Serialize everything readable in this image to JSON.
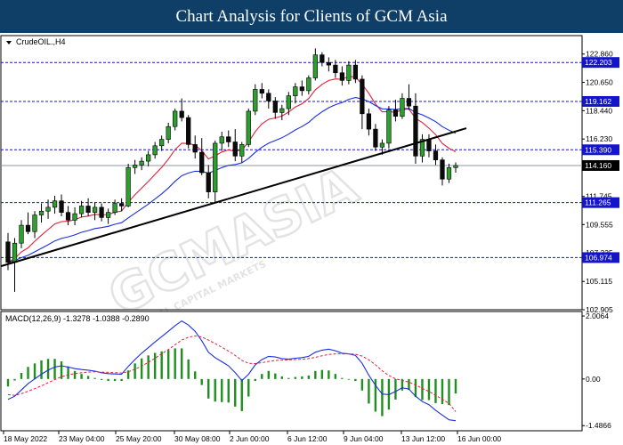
{
  "banner": {
    "title": "Chart Analysis for Clients of GCM Asia"
  },
  "watermark": {
    "brand": "GCMASIA",
    "tagline": "GLOBAL CAPITAL MARKETS"
  },
  "chart_data": [
    {
      "type": "candlestick",
      "symbol_label": "CrudeOIL.,H4",
      "y_ticks": [
        "122.860",
        "120.650",
        "118.440",
        "116.230",
        "111.745",
        "109.555",
        "107.335",
        "105.115",
        "102.905"
      ],
      "ylim": [
        102.905,
        124.3
      ],
      "levels": [
        {
          "label": "122.203",
          "value": 122.203,
          "color": "#1414c8"
        },
        {
          "label": "119.162",
          "value": 119.162,
          "color": "#1414c8"
        },
        {
          "label": "115.390",
          "value": 115.39,
          "color": "#1414c8"
        },
        {
          "label": "111.265",
          "value": 111.265,
          "color": "#1414c8"
        },
        {
          "label": "106.974",
          "value": 106.974,
          "color": "#1414c8"
        }
      ],
      "current_price": {
        "label": "114.160",
        "value": 114.16
      },
      "candles": [
        [
          108.2,
          108.9,
          106.0,
          106.6
        ],
        [
          106.6,
          108.5,
          104.3,
          108.1
        ],
        [
          108.1,
          109.9,
          107.7,
          109.5
        ],
        [
          109.5,
          110.5,
          108.8,
          109.0
        ],
        [
          109.0,
          110.6,
          108.5,
          110.3
        ],
        [
          110.3,
          111.2,
          109.7,
          110.6
        ],
        [
          110.6,
          111.5,
          110.0,
          110.9
        ],
        [
          110.9,
          111.8,
          110.4,
          111.4
        ],
        [
          111.4,
          111.9,
          110.2,
          110.5
        ],
        [
          110.5,
          111.0,
          109.5,
          109.9
        ],
        [
          109.9,
          110.9,
          109.5,
          110.4
        ],
        [
          110.4,
          111.4,
          110.1,
          111.0
        ],
        [
          111.0,
          111.6,
          110.2,
          110.5
        ],
        [
          110.5,
          111.3,
          109.9,
          110.9
        ],
        [
          110.9,
          111.2,
          109.8,
          110.1
        ],
        [
          110.1,
          110.8,
          109.6,
          110.5
        ],
        [
          110.5,
          111.5,
          110.3,
          111.2
        ],
        [
          111.2,
          111.6,
          110.6,
          111.0
        ],
        [
          111.0,
          114.3,
          110.9,
          114.0
        ],
        [
          114.0,
          114.6,
          113.5,
          114.2
        ],
        [
          114.2,
          114.8,
          113.8,
          114.5
        ],
        [
          114.5,
          115.3,
          114.1,
          115.0
        ],
        [
          115.0,
          116.0,
          114.7,
          115.7
        ],
        [
          115.7,
          116.5,
          115.3,
          116.2
        ],
        [
          116.2,
          117.5,
          115.9,
          117.2
        ],
        [
          117.2,
          118.6,
          116.9,
          118.4
        ],
        [
          118.4,
          119.4,
          117.6,
          117.9
        ],
        [
          117.9,
          118.1,
          115.5,
          115.8
        ],
        [
          115.8,
          116.5,
          114.7,
          115.2
        ],
        [
          115.2,
          116.3,
          113.4,
          113.6
        ],
        [
          113.6,
          114.2,
          111.6,
          112.1
        ],
        [
          112.1,
          116.1,
          111.3,
          115.9
        ],
        [
          115.9,
          116.8,
          115.3,
          116.4
        ],
        [
          116.4,
          116.9,
          115.6,
          116.0
        ],
        [
          116.0,
          117.0,
          114.5,
          114.9
        ],
        [
          114.9,
          116.0,
          114.4,
          115.8
        ],
        [
          115.8,
          118.6,
          115.6,
          118.4
        ],
        [
          118.4,
          120.5,
          118.1,
          120.1
        ],
        [
          120.1,
          120.6,
          119.4,
          119.8
        ],
        [
          119.8,
          120.1,
          118.6,
          119.2
        ],
        [
          119.2,
          119.5,
          117.8,
          118.3
        ],
        [
          118.3,
          118.9,
          117.7,
          118.6
        ],
        [
          118.6,
          119.9,
          118.1,
          119.6
        ],
        [
          119.6,
          120.6,
          119.0,
          120.3
        ],
        [
          120.3,
          120.8,
          119.6,
          120.0
        ],
        [
          120.0,
          121.2,
          119.7,
          121.0
        ],
        [
          121.0,
          123.3,
          120.8,
          122.8
        ],
        [
          122.8,
          123.0,
          121.9,
          122.2
        ],
        [
          122.2,
          122.6,
          121.5,
          122.0
        ],
        [
          122.0,
          122.4,
          121.0,
          121.4
        ],
        [
          121.4,
          121.9,
          120.4,
          120.8
        ],
        [
          120.8,
          122.3,
          120.5,
          122.0
        ],
        [
          122.0,
          122.4,
          120.6,
          120.9
        ],
        [
          120.9,
          121.2,
          117.0,
          118.2
        ],
        [
          118.2,
          118.6,
          116.5,
          117.0
        ],
        [
          117.0,
          117.4,
          115.3,
          115.6
        ],
        [
          115.6,
          116.2,
          115.0,
          115.9
        ],
        [
          115.9,
          118.8,
          115.5,
          118.5
        ],
        [
          118.5,
          119.3,
          117.6,
          118.0
        ],
        [
          118.0,
          119.8,
          117.8,
          119.4
        ],
        [
          119.4,
          120.5,
          118.5,
          118.8
        ],
        [
          118.8,
          119.8,
          114.3,
          114.9
        ],
        [
          114.9,
          116.6,
          114.4,
          116.2
        ],
        [
          116.2,
          116.6,
          114.8,
          115.3
        ],
        [
          115.3,
          115.8,
          114.2,
          114.6
        ],
        [
          114.6,
          114.8,
          112.6,
          113.1
        ],
        [
          113.1,
          114.3,
          112.8,
          114.0
        ],
        [
          114.0,
          114.4,
          113.6,
          114.16
        ]
      ],
      "moving_averages": [
        {
          "color": "#e0203a",
          "period": 9
        },
        {
          "color": "#1a2ee0",
          "period": 22
        }
      ],
      "trendlines": [
        {
          "from": {
            "candle": 0,
            "value": 106.3
          },
          "to": {
            "candle": 67,
            "value": 117.0
          },
          "color": "#000000"
        }
      ],
      "x_ticks": [
        "18 May 2022",
        "23 May 04:00",
        "25 May 20:00",
        "30 May 08:00",
        "2 Jun 00:00",
        "6 Jun 12:00",
        "9 Jun 04:00",
        "13 Jun 12:00",
        "16 Jun 00:00"
      ]
    },
    {
      "type": "macd",
      "label": "MACD(12,26,9) -1.3278 -1.0388 -0.2890",
      "y_ticks": [
        "2.0064",
        "0.00",
        "-1.4866"
      ],
      "ylim": [
        -1.65,
        2.15
      ],
      "macd": [
        -0.65,
        -0.55,
        -0.35,
        -0.15,
        0.0,
        0.15,
        0.28,
        0.38,
        0.42,
        0.38,
        0.33,
        0.3,
        0.28,
        0.25,
        0.2,
        0.17,
        0.16,
        0.15,
        0.4,
        0.62,
        0.82,
        1.0,
        1.18,
        1.35,
        1.52,
        1.7,
        1.85,
        1.72,
        1.52,
        1.22,
        0.85,
        0.68,
        0.55,
        0.42,
        0.2,
        -0.05,
        0.15,
        0.45,
        0.62,
        0.72,
        0.7,
        0.65,
        0.63,
        0.66,
        0.68,
        0.72,
        0.85,
        0.92,
        0.95,
        0.9,
        0.82,
        0.8,
        0.75,
        0.5,
        0.12,
        -0.2,
        -0.48,
        -0.5,
        -0.4,
        -0.28,
        -0.32,
        -0.55,
        -0.72,
        -0.82,
        -1.0,
        -1.15,
        -1.3,
        -1.33
      ],
      "signal": [
        -0.5,
        -0.52,
        -0.47,
        -0.39,
        -0.31,
        -0.22,
        -0.12,
        -0.02,
        0.07,
        0.13,
        0.17,
        0.2,
        0.22,
        0.23,
        0.22,
        0.21,
        0.2,
        0.19,
        0.23,
        0.31,
        0.41,
        0.53,
        0.66,
        0.8,
        0.94,
        1.09,
        1.24,
        1.33,
        1.37,
        1.34,
        1.24,
        1.13,
        1.01,
        0.89,
        0.75,
        0.59,
        0.5,
        0.49,
        0.52,
        0.56,
        0.59,
        0.6,
        0.61,
        0.62,
        0.63,
        0.65,
        0.69,
        0.74,
        0.78,
        0.8,
        0.8,
        0.8,
        0.79,
        0.73,
        0.61,
        0.45,
        0.26,
        0.11,
        0.01,
        -0.05,
        -0.1,
        -0.19,
        -0.3,
        -0.4,
        -0.52,
        -0.65,
        -0.78,
        -1.04
      ],
      "histogram_color": "#1f8f1f"
    }
  ]
}
